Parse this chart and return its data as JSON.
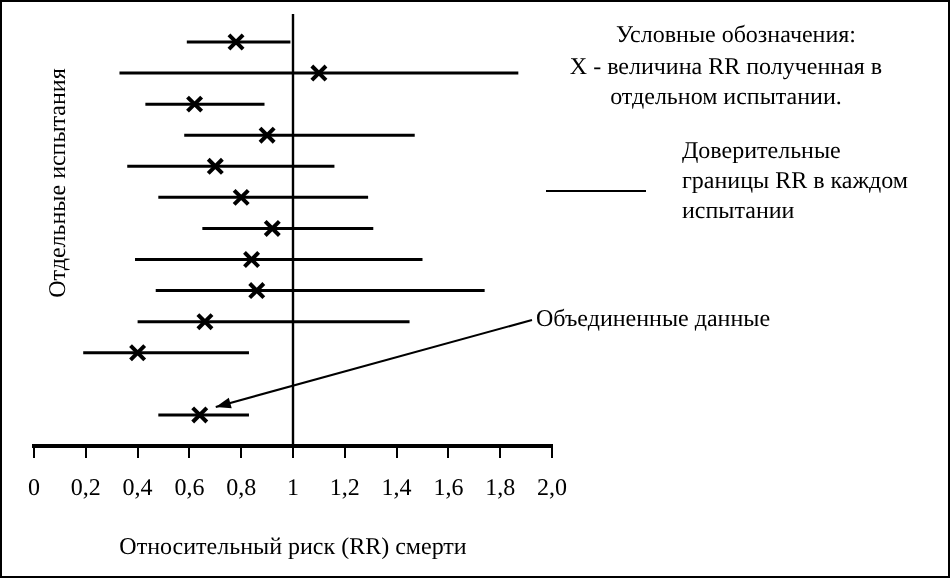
{
  "chart_data": {
    "type": "scatter",
    "orientation": "horizontal",
    "xlabel": "Относительный риск (RR) смерти",
    "ylabel": "Отдельные испытания",
    "xlim": [
      0,
      2
    ],
    "xticks": [
      0,
      {
        "value": 0.2,
        "label": "0,2"
      },
      {
        "value": 0.4,
        "label": "0,4"
      },
      {
        "value": 0.6,
        "label": "0,6"
      },
      {
        "value": 0.8,
        "label": "0,8"
      },
      1,
      {
        "value": 1.2,
        "label": "1,2"
      },
      {
        "value": 1.4,
        "label": "1,4"
      },
      {
        "value": 1.6,
        "label": "1,6"
      },
      {
        "value": 1.8,
        "label": "1,8"
      },
      {
        "value": 2.0,
        "label": "2,0"
      }
    ],
    "categories": [
      null,
      null,
      null,
      null,
      null,
      null,
      null,
      null,
      null,
      null,
      null,
      null,
      null
    ],
    "values": [
      0.78,
      1.1,
      0.62,
      0.9,
      0.7,
      0.8,
      0.92,
      0.84,
      0.86,
      0.66,
      0.4,
      null,
      0.64
    ],
    "errors": [
      [
        0.59,
        0.99
      ],
      [
        0.33,
        1.87
      ],
      [
        0.43,
        0.89
      ],
      [
        0.58,
        1.47
      ],
      [
        0.36,
        1.16
      ],
      [
        0.48,
        1.29
      ],
      [
        0.65,
        1.31
      ],
      [
        0.39,
        1.5
      ],
      [
        0.47,
        1.74
      ],
      [
        0.4,
        1.45
      ],
      [
        0.19,
        0.83
      ],
      null,
      [
        0.48,
        0.83
      ]
    ],
    "color": "#000000",
    "marker": "cross",
    "ref_lines": [
      {
        "axis": "x",
        "value": 1
      }
    ],
    "annotations": [
      "Условные обозначения:",
      "X - величина RR  полученная в отдельном испытании.",
      "Доверительные границы RR  в каждом испытании",
      "Объединенные данные"
    ]
  }
}
